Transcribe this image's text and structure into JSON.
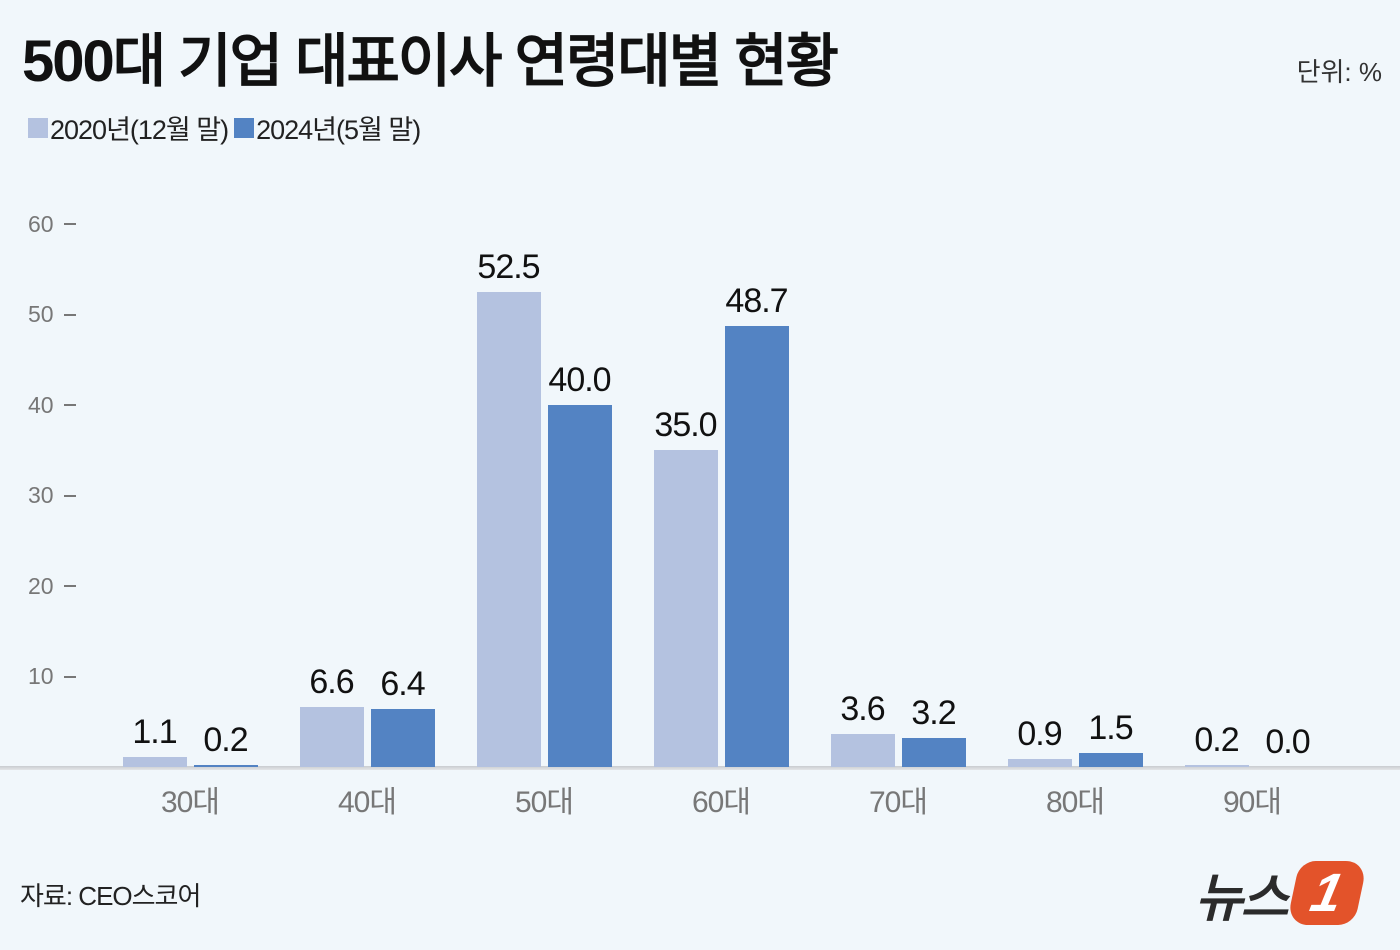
{
  "title": "500대 기업 대표이사 연령대별 현황",
  "unit": "단위: %",
  "legend": [
    {
      "label": "2020년(12월 말)",
      "color": "#b4c2e0"
    },
    {
      "label": "2024년(5월 말)",
      "color": "#5383c3"
    }
  ],
  "source": "자료: CEO스코어",
  "logo": {
    "text": "뉴스",
    "badge": "1"
  },
  "chart_data": {
    "type": "bar",
    "title": "500대 기업 대표이사 연령대별 현황",
    "xlabel": "",
    "ylabel": "단위: %",
    "ylim": [
      0,
      60
    ],
    "yticks": [
      10,
      20,
      30,
      40,
      50,
      60
    ],
    "grid": false,
    "legend_position": "top-left",
    "categories": [
      "30대",
      "40대",
      "50대",
      "60대",
      "70대",
      "80대",
      "90대"
    ],
    "series": [
      {
        "name": "2020년(12월 말)",
        "color": "#b4c2e0",
        "values": [
          1.1,
          6.6,
          52.5,
          35.0,
          3.6,
          0.9,
          0.2
        ],
        "labels": [
          "1.1",
          "6.6",
          "52.5",
          "35.0",
          "3.6",
          "0.9",
          "0.2"
        ]
      },
      {
        "name": "2024년(5월 말)",
        "color": "#5383c3",
        "values": [
          0.2,
          6.4,
          40.0,
          48.7,
          3.2,
          1.5,
          0.0
        ],
        "labels": [
          "0.2",
          "6.4",
          "40.0",
          "48.7",
          "3.2",
          "1.5",
          "0.0"
        ]
      }
    ]
  }
}
